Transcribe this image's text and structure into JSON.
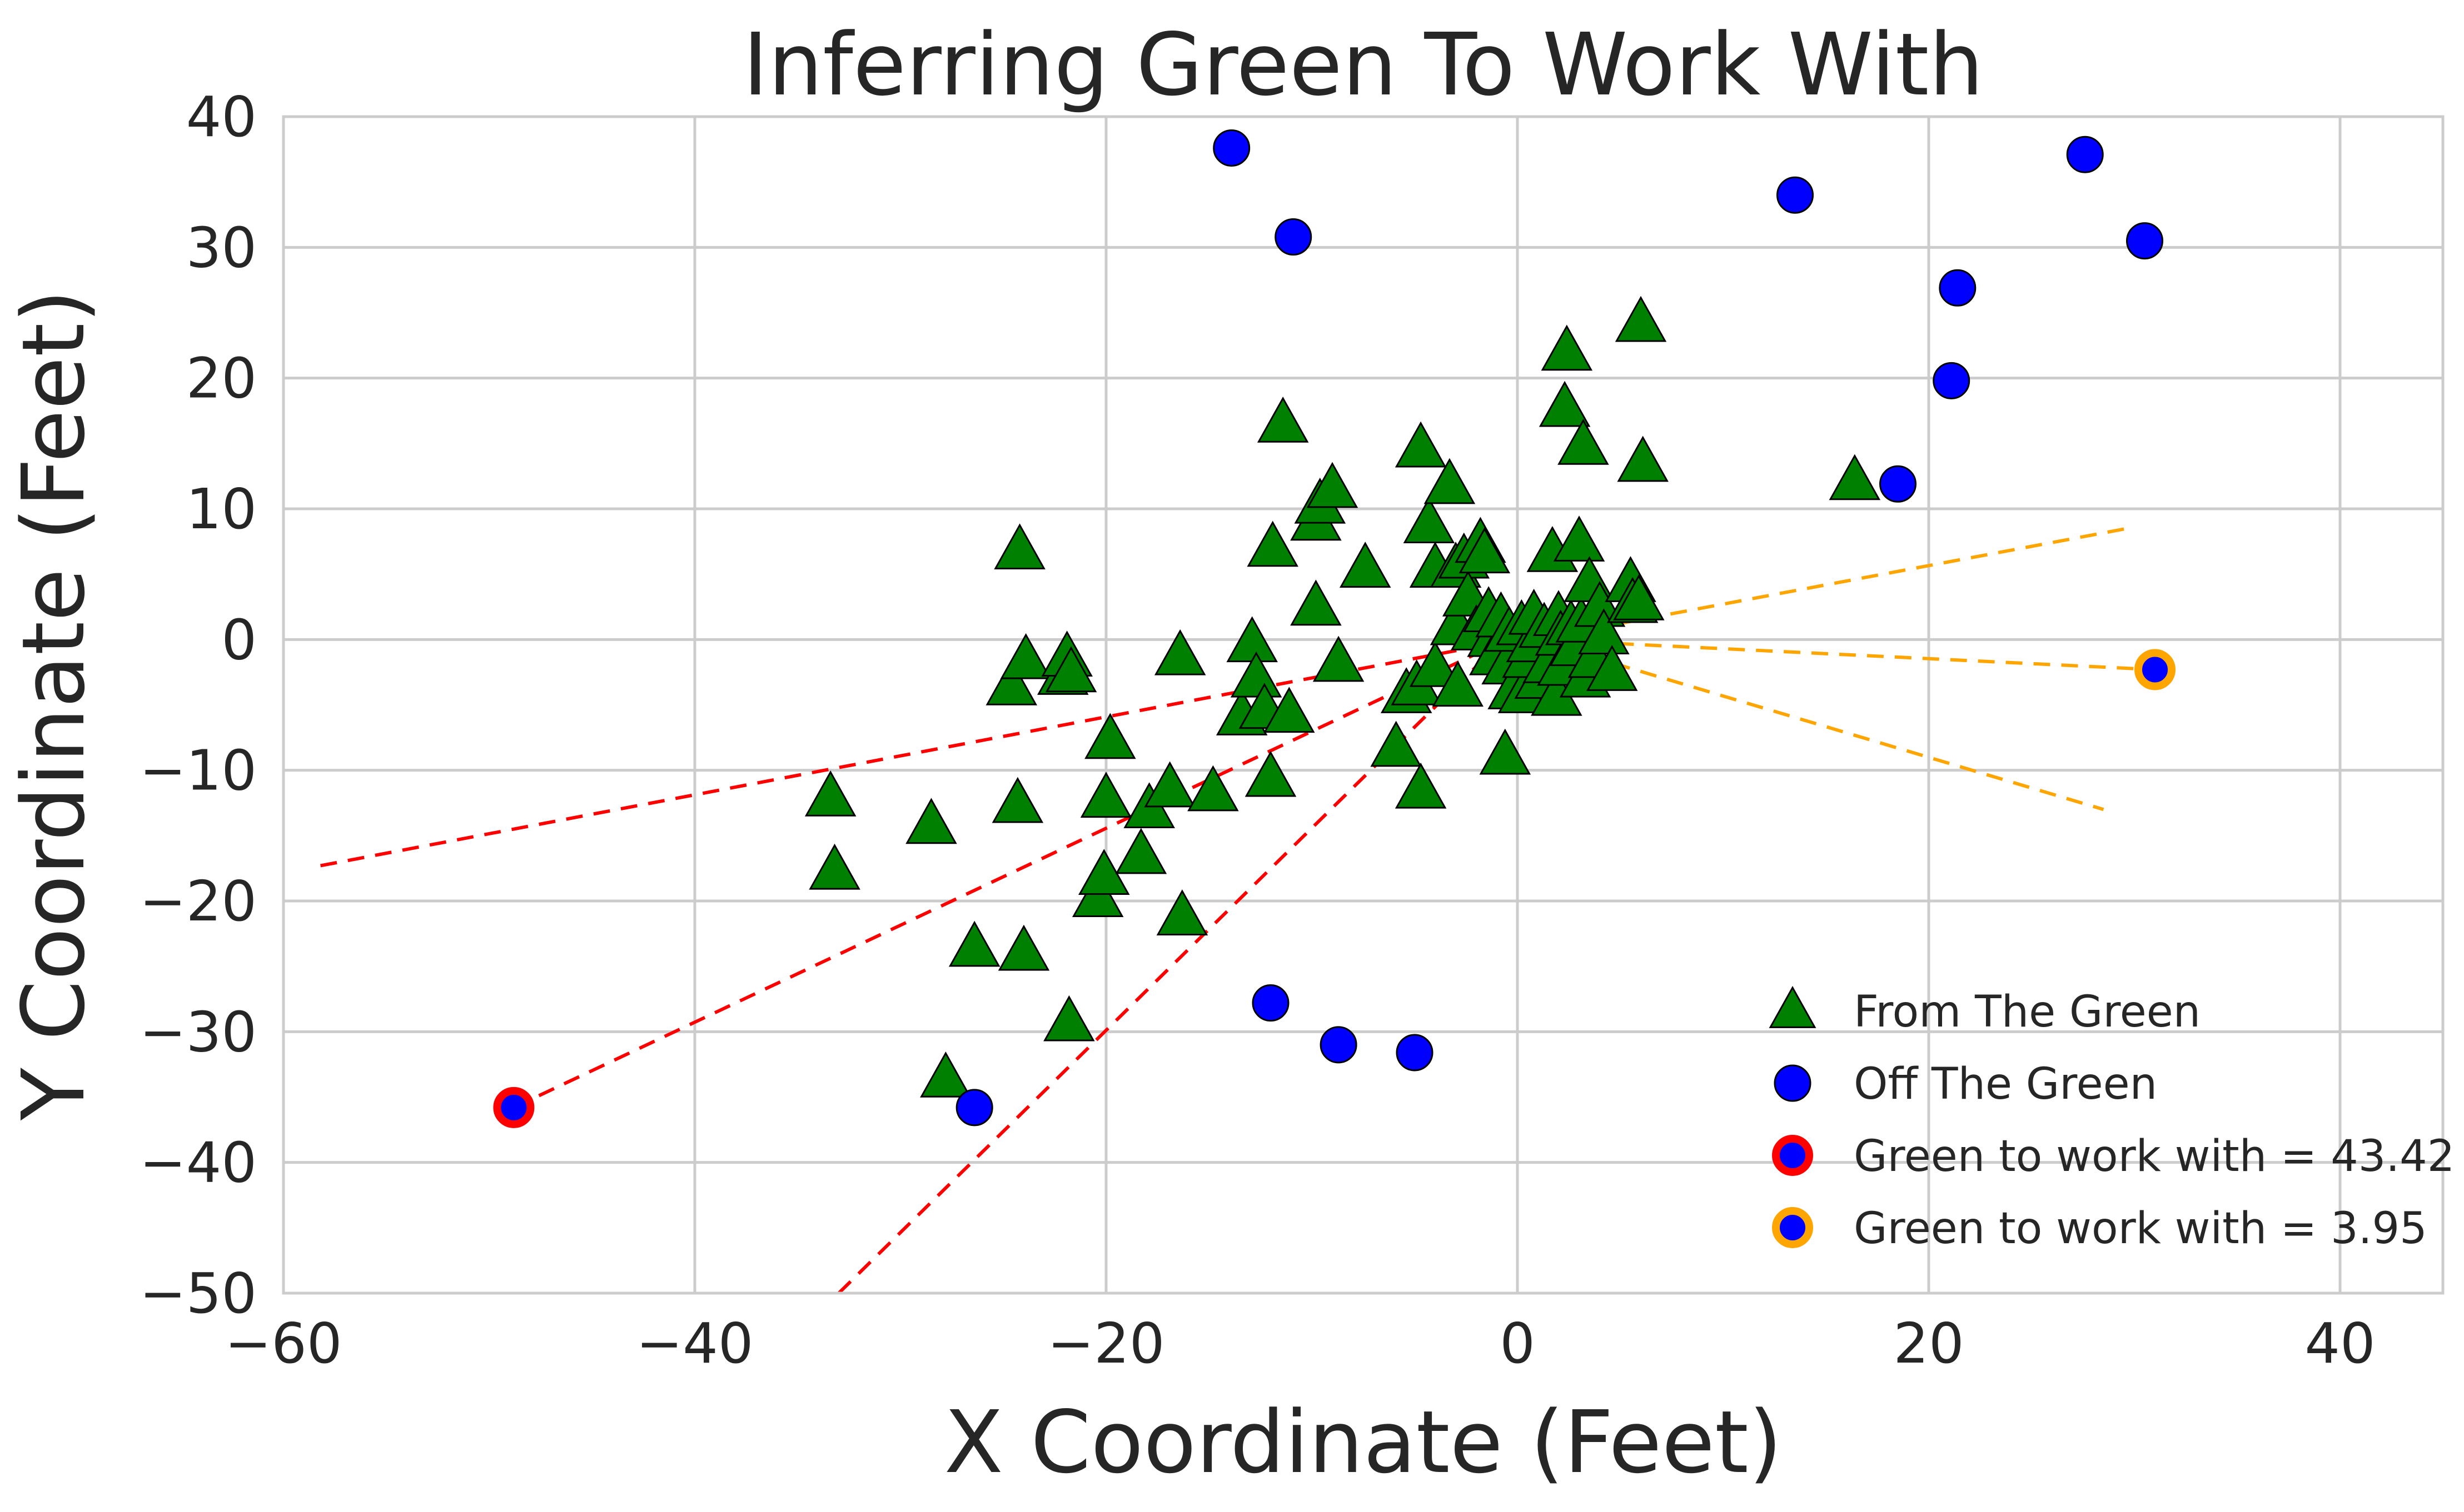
{
  "chart_data": {
    "type": "scatter",
    "title": "Inferring Green To Work With",
    "xlabel": "X Coordinate (Feet)",
    "ylabel": "Y Coordinate (Feet)",
    "xlim": [
      -60,
      45
    ],
    "ylim": [
      -50,
      40
    ],
    "xticks": [
      -60,
      -40,
      -20,
      0,
      20,
      40
    ],
    "yticks": [
      -50,
      -40,
      -30,
      -20,
      -10,
      0,
      10,
      20,
      30,
      40
    ],
    "xtick_labels": [
      "−60",
      "−40",
      "−20",
      "0",
      "20",
      "40"
    ],
    "ytick_labels": [
      "−50",
      "−40",
      "−30",
      "−20",
      "−10",
      "0",
      "10",
      "20",
      "30",
      "40"
    ],
    "grid": true,
    "legend_position": "bottom-right",
    "series": [
      {
        "name": "From The Green",
        "marker": "triangle",
        "color": "#008000",
        "points": [
          [
            -33.4,
            -12.1
          ],
          [
            -33.2,
            -17.7
          ],
          [
            -28.5,
            -14.2
          ],
          [
            -27.8,
            -33.6
          ],
          [
            -26.4,
            -23.6
          ],
          [
            -24.6,
            -3.6
          ],
          [
            -24.3,
            -12.6
          ],
          [
            -24.2,
            6.8
          ],
          [
            -24.0,
            -23.9
          ],
          [
            -23.9,
            -1.6
          ],
          [
            -22.1,
            -2.8
          ],
          [
            -21.9,
            -1.4
          ],
          [
            -21.7,
            -2.6
          ],
          [
            -21.8,
            -29.3
          ],
          [
            -20.4,
            -19.8
          ],
          [
            -20.1,
            -18.1
          ],
          [
            -20.0,
            -12.2
          ],
          [
            -19.8,
            -7.7
          ],
          [
            -18.3,
            -16.5
          ],
          [
            -17.9,
            -13.0
          ],
          [
            -16.9,
            -11.4
          ],
          [
            -16.4,
            -1.3
          ],
          [
            -16.3,
            -21.2
          ],
          [
            -14.8,
            -11.7
          ],
          [
            -13.4,
            -5.9
          ],
          [
            -12.9,
            -0.3
          ],
          [
            -12.7,
            -3.0
          ],
          [
            -12.3,
            -5.4
          ],
          [
            -12.0,
            -10.6
          ],
          [
            -11.9,
            7.0
          ],
          [
            -11.4,
            16.5
          ],
          [
            -11.1,
            -5.7
          ],
          [
            -9.8,
            2.5
          ],
          [
            -9.8,
            9.0
          ],
          [
            -9.6,
            10.3
          ],
          [
            -9.0,
            11.5
          ],
          [
            -8.7,
            -1.8
          ],
          [
            -7.4,
            5.4
          ],
          [
            -5.9,
            -8.3
          ],
          [
            -5.4,
            -4.2
          ],
          [
            -4.9,
            -3.6
          ],
          [
            -4.7,
            -11.5
          ],
          [
            -4.7,
            14.6
          ],
          [
            -4.3,
            8.8
          ],
          [
            -4.0,
            5.4
          ],
          [
            -4.0,
            -2.2
          ],
          [
            -3.3,
            11.8
          ],
          [
            -3.0,
            1.0
          ],
          [
            -3.0,
            5.4
          ],
          [
            -2.9,
            -3.7
          ],
          [
            -2.6,
            6.1
          ],
          [
            -2.4,
            3.2
          ],
          [
            -2.0,
            0.6
          ],
          [
            -1.8,
            7.3
          ],
          [
            -1.6,
            6.5
          ],
          [
            -1.4,
            2.0
          ],
          [
            -1.2,
            0.1
          ],
          [
            -1.1,
            -1.3
          ],
          [
            -0.8,
            1.6
          ],
          [
            -0.6,
            -8.9
          ],
          [
            -0.5,
            -2.0
          ],
          [
            -0.4,
            0.5
          ],
          [
            -0.2,
            -3.9
          ],
          [
            0.2,
            1.0
          ],
          [
            0.3,
            -4.2
          ],
          [
            0.5,
            -1.5
          ],
          [
            0.7,
            -0.3
          ],
          [
            0.8,
            1.8
          ],
          [
            1.1,
            -3.1
          ],
          [
            1.3,
            0.8
          ],
          [
            1.5,
            -1.9
          ],
          [
            1.7,
            6.6
          ],
          [
            1.9,
            -4.4
          ],
          [
            2.0,
            1.7
          ],
          [
            2.1,
            0.2
          ],
          [
            2.2,
            -2.1
          ],
          [
            2.3,
            17.7
          ],
          [
            2.4,
            22.0
          ],
          [
            2.6,
            1.0
          ],
          [
            2.8,
            -0.6
          ],
          [
            3.0,
            7.4
          ],
          [
            3.1,
            1.2
          ],
          [
            3.2,
            14.8
          ],
          [
            3.3,
            -3.0
          ],
          [
            3.5,
            4.3
          ],
          [
            3.7,
            -1.5
          ],
          [
            4.0,
            2.4
          ],
          [
            4.2,
            0.3
          ],
          [
            4.6,
            -2.5
          ],
          [
            5.5,
            4.3
          ],
          [
            5.6,
            2.7
          ],
          [
            5.9,
            2.9
          ],
          [
            6.0,
            24.2
          ],
          [
            6.1,
            13.5
          ],
          [
            16.4,
            12.1
          ]
        ]
      },
      {
        "name": "Off The Green",
        "marker": "circle",
        "color": "#0000ff",
        "points": [
          [
            -26.4,
            -35.8
          ],
          [
            -13.9,
            37.6
          ],
          [
            -12.0,
            -27.8
          ],
          [
            -10.9,
            30.8
          ],
          [
            -8.7,
            -31.0
          ],
          [
            -5.0,
            -31.6
          ],
          [
            13.5,
            34.0
          ],
          [
            18.5,
            11.9
          ],
          [
            21.1,
            19.8
          ],
          [
            21.4,
            26.9
          ],
          [
            27.6,
            37.1
          ],
          [
            30.5,
            30.5
          ],
          [
            31.0,
            -2.3
          ]
        ]
      },
      {
        "name": "Green to work with = 43.42",
        "marker": "circle",
        "color": "#0000ff",
        "edge_color": "#ff0000",
        "points": [
          [
            -48.8,
            -35.8
          ]
        ]
      },
      {
        "name": "Green to work with = 3.95",
        "marker": "circle",
        "color": "#0000ff",
        "edge_color": "#ffa500",
        "points": [
          [
            31.0,
            -2.3
          ]
        ]
      }
    ],
    "guide_lines": [
      {
        "color": "#ff0000",
        "style": "dashed",
        "points": [
          [
            -58.2,
            -17.3
          ],
          [
            -0.8,
            -0.2
          ]
        ]
      },
      {
        "color": "#ff0000",
        "style": "dashed",
        "points": [
          [
            -48.8,
            -35.8
          ],
          [
            -0.8,
            -0.2
          ]
        ]
      },
      {
        "color": "#ff0000",
        "style": "dashed",
        "points": [
          [
            -33.0,
            -50.0
          ],
          [
            -0.8,
            -0.2
          ]
        ]
      },
      {
        "color": "#ffa500",
        "style": "dashed",
        "points": [
          [
            0.8,
            0.0
          ],
          [
            30.0,
            8.6
          ]
        ]
      },
      {
        "color": "#ffa500",
        "style": "dashed",
        "points": [
          [
            0.8,
            0.0
          ],
          [
            31.0,
            -2.3
          ]
        ]
      },
      {
        "color": "#ffa500",
        "style": "dashed",
        "points": [
          [
            0.8,
            0.0
          ],
          [
            28.5,
            -13.0
          ]
        ]
      }
    ]
  }
}
